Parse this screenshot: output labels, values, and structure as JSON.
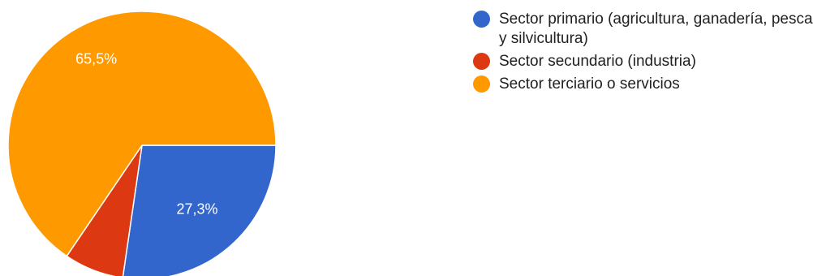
{
  "chart_data": {
    "type": "pie",
    "title": "",
    "categories": [
      "Sector primario (agricultura, ganadería, pesca y silvicultura)",
      "Sector secundario (industria)",
      "Sector terciario o servicios"
    ],
    "values": [
      27.3,
      7.2,
      65.5
    ],
    "labels": [
      "27,3%",
      "",
      "65,5%"
    ],
    "colors": [
      "#3366cc",
      "#dc3912",
      "#ff9900"
    ],
    "legend_position": "right"
  }
}
